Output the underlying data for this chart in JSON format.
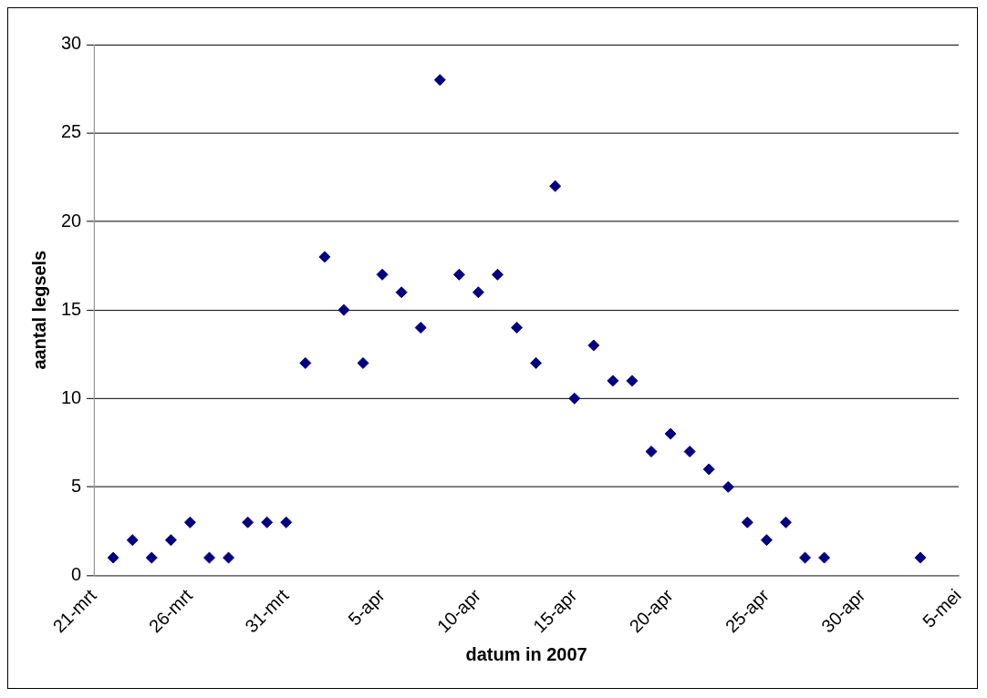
{
  "chart_data": {
    "type": "scatter",
    "xlabel": "datum in 2007",
    "ylabel": "aantal legsels",
    "x": [
      "2007-03-22",
      "2007-03-23",
      "2007-03-24",
      "2007-03-25",
      "2007-03-26",
      "2007-03-27",
      "2007-03-28",
      "2007-03-29",
      "2007-03-30",
      "2007-03-31",
      "2007-04-01",
      "2007-04-02",
      "2007-04-03",
      "2007-04-04",
      "2007-04-05",
      "2007-04-06",
      "2007-04-07",
      "2007-04-08",
      "2007-04-09",
      "2007-04-10",
      "2007-04-11",
      "2007-04-12",
      "2007-04-13",
      "2007-04-14",
      "2007-04-15",
      "2007-04-16",
      "2007-04-17",
      "2007-04-18",
      "2007-04-19",
      "2007-04-20",
      "2007-04-21",
      "2007-04-22",
      "2007-04-23",
      "2007-04-24",
      "2007-04-25",
      "2007-04-26",
      "2007-04-27",
      "2007-04-28",
      "2007-05-03"
    ],
    "values": [
      1,
      2,
      1,
      2,
      3,
      1,
      1,
      3,
      3,
      3,
      12,
      18,
      15,
      12,
      17,
      16,
      14,
      28,
      17,
      16,
      17,
      14,
      12,
      22,
      10,
      13,
      11,
      11,
      7,
      8,
      7,
      6,
      5,
      3,
      2,
      3,
      1,
      1,
      1
    ],
    "color": "#000080",
    "marker": "diamond",
    "grid": "y",
    "legend": false,
    "xlim": [
      "2007-03-21",
      "2007-05-05"
    ],
    "xticks": [
      {
        "value": "2007-03-21",
        "label": "21-mrt"
      },
      {
        "value": "2007-03-26",
        "label": "26-mrt"
      },
      {
        "value": "2007-03-31",
        "label": "31-mrt"
      },
      {
        "value": "2007-04-05",
        "label": "5-apr"
      },
      {
        "value": "2007-04-10",
        "label": "10-apr"
      },
      {
        "value": "2007-04-15",
        "label": "15-apr"
      },
      {
        "value": "2007-04-20",
        "label": "20-apr"
      },
      {
        "value": "2007-04-25",
        "label": "25-apr"
      },
      {
        "value": "2007-04-30",
        "label": "30-apr"
      },
      {
        "value": "2007-05-05",
        "label": "5-mei"
      }
    ],
    "ylim": [
      0,
      30
    ],
    "yticks": [
      0,
      5,
      10,
      15,
      20,
      25,
      30
    ]
  }
}
